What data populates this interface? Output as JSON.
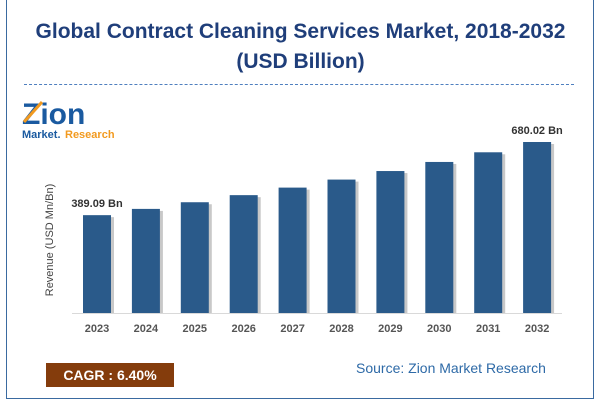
{
  "title_line1": "Global Contract Cleaning Services Market, 2018-2032",
  "title_line2": "(USD Billion)",
  "logo": {
    "text_main": "Zion",
    "text_sub1": "Market",
    "text_sub2": "Research"
  },
  "cagr_label": "CAGR :  6.40%",
  "source": "Source: Zion Market Research",
  "colors": {
    "bar": "#2a5a8a",
    "title": "#1f3e7a",
    "cagr_bg": "#843c0c",
    "source": "#2e6aa7"
  },
  "chart_data": {
    "type": "bar",
    "ylabel": "Revenue (USD Mn/Bn)",
    "categories": [
      "2023",
      "2024",
      "2025",
      "2026",
      "2027",
      "2028",
      "2029",
      "2030",
      "2031",
      "2032"
    ],
    "values": [
      389.09,
      413.99,
      440.48,
      468.67,
      498.67,
      530.58,
      564.54,
      600.67,
      639.11,
      680.02
    ],
    "data_labels": {
      "2023": "389.09 Bn",
      "2032": "680.02 Bn"
    },
    "ylim": [
      0,
      700
    ],
    "grid": false
  }
}
